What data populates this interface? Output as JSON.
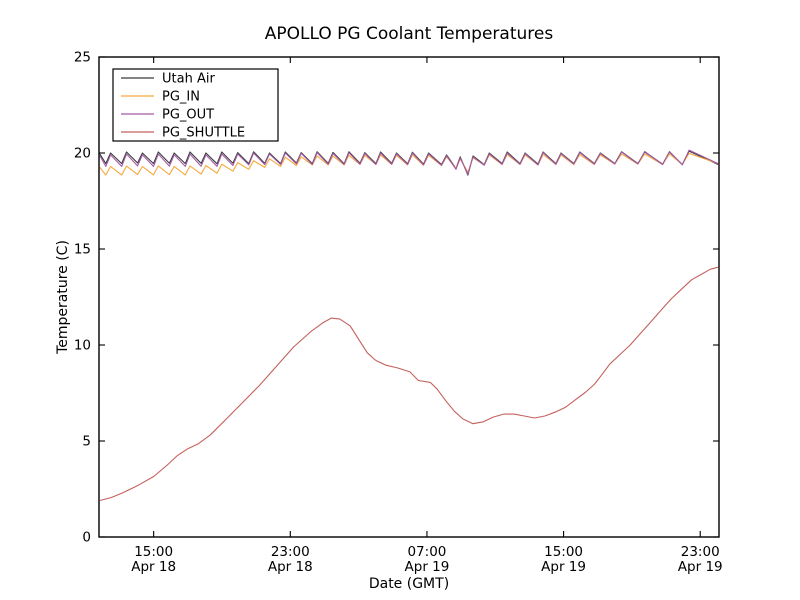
{
  "figure": {
    "title": "APOLLO PG Coolant Temperatures",
    "xlabel": "Date (GMT)",
    "ylabel": "Temperature (C)",
    "background_color": "#ffffff",
    "frame_color": "#000000"
  },
  "chart_data": {
    "type": "line",
    "title": "APOLLO PG Coolant Temperatures",
    "xlabel": "Date (GMT)",
    "ylabel": "Temperature (C)",
    "grid": false,
    "legend_position": "upper left",
    "x_unit": "hours since Apr 18 12:00 GMT",
    "xlim": [
      -0.2,
      36.1
    ],
    "ylim": [
      0,
      25
    ],
    "y_ticks": [
      0,
      5,
      10,
      15,
      20,
      25
    ],
    "x_ticks": [
      {
        "t": 3,
        "time": "15:00",
        "date": "Apr 18"
      },
      {
        "t": 11,
        "time": "23:00",
        "date": "Apr 18"
      },
      {
        "t": 19,
        "time": "07:00",
        "date": "Apr 19"
      },
      {
        "t": 27,
        "time": "15:00",
        "date": "Apr 19"
      },
      {
        "t": 35,
        "time": "23:00",
        "date": "Apr 19"
      }
    ],
    "series": [
      {
        "name": "Utah Air",
        "color": "#3b3b3b",
        "t": [
          -0.15,
          0.2,
          0.48,
          1.13,
          1.41,
          2.06,
          2.34,
          2.99,
          3.27,
          3.92,
          4.2,
          4.85,
          5.13,
          5.78,
          6.06,
          6.71,
          6.99,
          7.64,
          7.92,
          8.57,
          8.85,
          9.5,
          9.78,
          10.43,
          10.71,
          11.36,
          11.64,
          12.29,
          12.57,
          13.22,
          13.5,
          14.15,
          14.43,
          15.08,
          15.36,
          16.01,
          16.29,
          16.94,
          17.22,
          17.87,
          18.15,
          18.8,
          19.1,
          19.85,
          20.15,
          20.7,
          20.95,
          21.4,
          21.7,
          22.35,
          22.65,
          23.4,
          23.7,
          24.45,
          24.75,
          25.5,
          25.8,
          26.55,
          26.85,
          27.6,
          27.95,
          28.8,
          29.15,
          30.0,
          30.4,
          31.35,
          31.75,
          32.8,
          33.2,
          33.95,
          34.35,
          36.05
        ],
        "v": [
          19.95,
          19.45,
          20.0,
          19.45,
          20.05,
          19.48,
          20.0,
          19.45,
          20.05,
          19.47,
          20.0,
          19.45,
          20.05,
          19.46,
          20.0,
          19.44,
          20.05,
          19.47,
          20.02,
          19.45,
          20.06,
          19.46,
          20.0,
          19.45,
          20.05,
          19.48,
          20.02,
          19.45,
          20.07,
          19.46,
          20.03,
          19.44,
          20.06,
          19.47,
          20.02,
          19.45,
          20.05,
          19.46,
          20.0,
          19.44,
          20.04,
          19.42,
          20.0,
          19.4,
          19.9,
          19.2,
          19.8,
          18.85,
          19.85,
          19.4,
          20.0,
          19.45,
          20.05,
          19.45,
          20.0,
          19.42,
          20.05,
          19.45,
          20.0,
          19.45,
          20.05,
          19.45,
          20.0,
          19.45,
          20.07,
          19.45,
          20.05,
          19.42,
          20.05,
          19.4,
          20.1,
          19.4
        ]
      },
      {
        "name": "PG_IN",
        "color": "#f5a93e",
        "t": [
          -0.15,
          0.2,
          0.48,
          1.13,
          1.41,
          2.06,
          2.34,
          2.99,
          3.27,
          3.92,
          4.2,
          4.85,
          5.13,
          5.78,
          6.06,
          6.71,
          6.99,
          7.64,
          7.92,
          8.57,
          8.85,
          9.5,
          9.78,
          10.43,
          10.71,
          11.36,
          11.64,
          12.29,
          12.57,
          13.22,
          13.5,
          14.15,
          14.43,
          15.08,
          15.36,
          16.01,
          16.29,
          16.94,
          17.22,
          17.87,
          18.15,
          18.8,
          19.1,
          19.85,
          20.15,
          20.7,
          20.95,
          21.4,
          21.7,
          22.35,
          22.65,
          23.4,
          23.7,
          24.45,
          24.75,
          25.5,
          25.8,
          26.55,
          26.85,
          27.6,
          27.95,
          28.8,
          29.15,
          30.0,
          30.4,
          31.35,
          31.75,
          32.8,
          33.2,
          33.95,
          34.35,
          36.05
        ],
        "v": [
          19.25,
          18.85,
          19.3,
          18.85,
          19.32,
          18.88,
          19.3,
          18.86,
          19.33,
          18.87,
          19.3,
          18.86,
          19.33,
          18.9,
          19.35,
          18.95,
          19.42,
          19.05,
          19.5,
          19.15,
          19.6,
          19.25,
          19.7,
          19.3,
          19.78,
          19.35,
          19.8,
          19.38,
          19.85,
          19.38,
          19.85,
          19.38,
          19.88,
          19.4,
          19.88,
          19.4,
          19.9,
          19.4,
          19.88,
          19.38,
          19.9,
          19.36,
          19.88,
          19.35,
          19.8,
          19.2,
          19.7,
          19.0,
          19.75,
          19.38,
          19.9,
          19.4,
          19.92,
          19.4,
          19.9,
          19.38,
          19.92,
          19.4,
          19.9,
          19.4,
          19.92,
          19.4,
          19.9,
          19.42,
          19.95,
          19.42,
          19.95,
          19.4,
          19.95,
          19.4,
          19.98,
          19.45
        ]
      },
      {
        "name": "PG_OUT",
        "color": "#a25aa6",
        "t": [
          -0.15,
          0.2,
          0.48,
          1.13,
          1.41,
          2.06,
          2.34,
          2.99,
          3.27,
          3.92,
          4.2,
          4.85,
          5.13,
          5.78,
          6.06,
          6.71,
          6.99,
          7.64,
          7.92,
          8.57,
          8.85,
          9.5,
          9.78,
          10.43,
          10.71,
          11.36,
          11.64,
          12.29,
          12.57,
          13.22,
          13.5,
          14.15,
          14.43,
          15.08,
          15.36,
          16.01,
          16.29,
          16.94,
          17.22,
          17.87,
          18.15,
          18.8,
          19.1,
          19.85,
          20.15,
          20.7,
          20.95,
          21.4,
          21.7,
          22.35,
          22.65,
          23.4,
          23.7,
          24.45,
          24.75,
          25.5,
          25.8,
          26.55,
          26.85,
          27.6,
          27.95,
          28.8,
          29.15,
          30.0,
          30.4,
          31.35,
          31.75,
          32.8,
          33.2,
          33.95,
          34.35,
          36.05
        ],
        "v": [
          19.85,
          19.3,
          19.9,
          19.3,
          19.95,
          19.33,
          19.9,
          19.3,
          19.95,
          19.32,
          19.9,
          19.3,
          19.95,
          19.31,
          19.9,
          19.3,
          19.95,
          19.35,
          19.95,
          19.38,
          20.0,
          19.4,
          19.95,
          19.4,
          20.0,
          19.43,
          19.98,
          19.4,
          20.02,
          19.41,
          19.98,
          19.4,
          20.01,
          19.42,
          19.98,
          19.4,
          20.0,
          19.41,
          19.96,
          19.4,
          20.0,
          19.38,
          19.96,
          19.36,
          19.86,
          19.15,
          19.75,
          18.9,
          19.8,
          19.36,
          19.96,
          19.41,
          20.0,
          19.41,
          19.97,
          19.38,
          20.02,
          19.41,
          19.97,
          19.42,
          20.02,
          19.42,
          19.98,
          19.43,
          20.05,
          19.43,
          20.08,
          19.4,
          20.08,
          19.38,
          20.15,
          19.45
        ]
      },
      {
        "name": "PG_SHUTTLE",
        "color": "#c4615c",
        "t": [
          -0.15,
          0.5,
          1.2,
          2.1,
          3.0,
          3.8,
          4.4,
          5.0,
          5.6,
          6.3,
          7.2,
          8.2,
          9.2,
          10.2,
          11.2,
          12.2,
          12.9,
          13.4,
          13.9,
          14.5,
          15.0,
          15.5,
          16.0,
          16.6,
          17.3,
          18.0,
          18.5,
          19.2,
          19.6,
          20.1,
          20.6,
          21.1,
          21.7,
          22.3,
          22.9,
          23.5,
          24.1,
          24.7,
          25.3,
          25.9,
          26.5,
          27.1,
          27.7,
          28.3,
          28.8,
          29.2,
          29.7,
          30.3,
          30.9,
          31.5,
          32.1,
          32.7,
          33.3,
          33.9,
          34.5,
          35.1,
          35.6,
          36.05
        ],
        "v": [
          1.9,
          2.05,
          2.3,
          2.7,
          3.15,
          3.75,
          4.25,
          4.6,
          4.85,
          5.3,
          6.1,
          7.0,
          7.9,
          8.9,
          9.9,
          10.7,
          11.15,
          11.4,
          11.35,
          11.0,
          10.3,
          9.6,
          9.2,
          8.95,
          8.8,
          8.6,
          8.15,
          8.05,
          7.7,
          7.1,
          6.55,
          6.15,
          5.9,
          6.0,
          6.25,
          6.4,
          6.4,
          6.3,
          6.2,
          6.3,
          6.5,
          6.75,
          7.15,
          7.55,
          7.95,
          8.4,
          9.0,
          9.5,
          10.0,
          10.6,
          11.2,
          11.8,
          12.4,
          12.9,
          13.4,
          13.7,
          13.95,
          14.05
        ]
      }
    ]
  }
}
